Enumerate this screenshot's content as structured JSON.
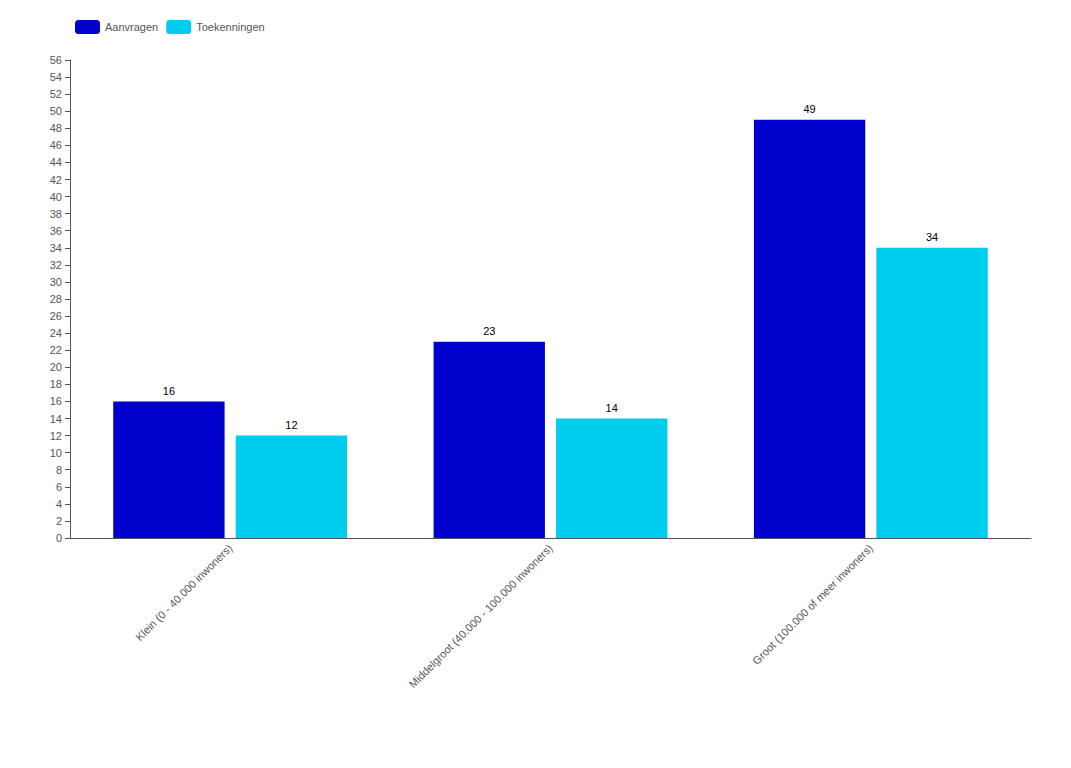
{
  "chart_data": {
    "type": "bar",
    "categories": [
      "Klein (0 - 40.000 inwoners)",
      "Middelgroot (40.000 - 100.000 inwoners)",
      "Groot (100.000 of meer inwoners)"
    ],
    "series": [
      {
        "name": "Aanvragen",
        "color": "#0000CC",
        "values": [
          16,
          23,
          49
        ]
      },
      {
        "name": "Toekenningen",
        "color": "#00CCEE",
        "values": [
          12,
          14,
          34
        ]
      }
    ],
    "ylim": [
      0,
      56
    ],
    "yticks": [
      0,
      2,
      4,
      6,
      8,
      10,
      12,
      14,
      16,
      18,
      20,
      22,
      24,
      26,
      28,
      30,
      32,
      34,
      36,
      38,
      40,
      42,
      44,
      46,
      48,
      50,
      52,
      54,
      56
    ],
    "grid": false,
    "legend": "upper left",
    "data_labels": true
  }
}
